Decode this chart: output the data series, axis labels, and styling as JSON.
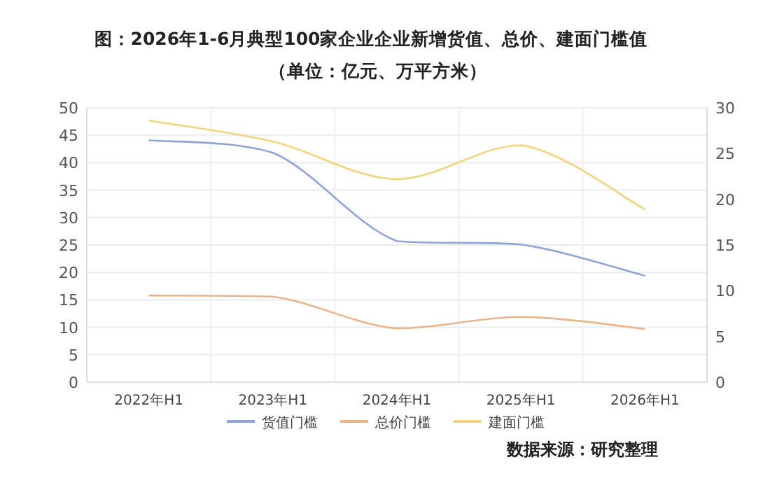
{
  "chart_data": {
    "type": "line",
    "title": "图：2026年1-6月典型100家企业企业新增货值、总价、建面门槛值",
    "subtitle": "（单位：亿元、万平方米）",
    "categories": [
      "2022年H1",
      "2023年H1",
      "2024年H1",
      "2025年H1",
      "2026年H1"
    ],
    "series": [
      {
        "name": "货值门槛",
        "color": "#8fa4d6",
        "values": [
          44.1,
          41.8,
          25.7,
          25.1,
          19.4
        ]
      },
      {
        "name": "总价门槛",
        "color": "#e8b48a",
        "values": [
          15.8,
          15.6,
          9.8,
          11.9,
          9.7
        ]
      },
      {
        "name": "建面门槛",
        "color": "#f0d57a",
        "axis": "y2",
        "values": [
          28.6,
          26.3,
          22.2,
          25.9,
          18.9
        ]
      }
    ],
    "ylim": [
      0,
      50
    ],
    "yticks": [
      0,
      5,
      10,
      15,
      20,
      25,
      30,
      35,
      40,
      45,
      50
    ],
    "y2lim": [
      0,
      30
    ],
    "y2ticks": [
      0,
      5,
      10,
      15,
      20,
      25,
      30
    ],
    "grid": true,
    "legend": "bottom",
    "marker": "none",
    "line_style": "solid",
    "annotations": [
      "数据来源：研究整理"
    ]
  }
}
